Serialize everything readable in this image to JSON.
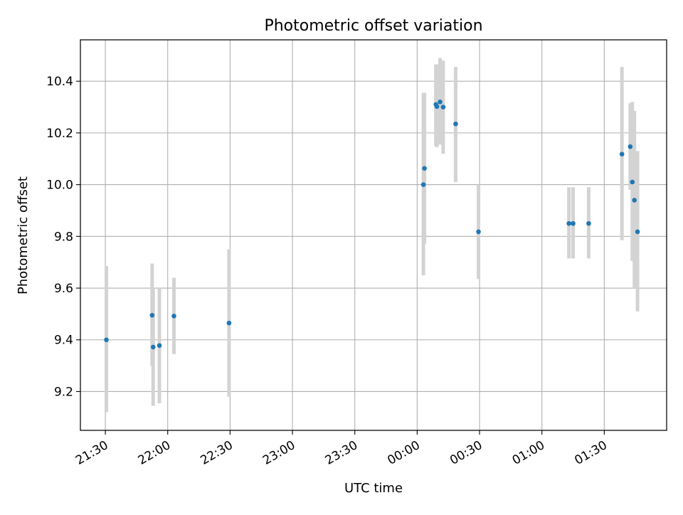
{
  "chart_data": {
    "type": "scatter",
    "title": "Photometric offset variation",
    "xlabel": "UTC time",
    "ylabel": "Photometric offset",
    "grid": true,
    "xlim": [
      "21:18",
      "02:00"
    ],
    "ylim": [
      9.05,
      10.56
    ],
    "x_ticks": [
      "21:30",
      "22:00",
      "22:30",
      "23:00",
      "23:30",
      "00:00",
      "00:30",
      "01:00",
      "01:30"
    ],
    "y_ticks": [
      "9.2",
      "9.4",
      "9.6",
      "9.8",
      "10.0",
      "10.2",
      "10.4"
    ],
    "colors": {
      "points": "#1f77b4",
      "error_bars": "#d3d3d3",
      "grid": "#b0b0b0"
    },
    "points": [
      {
        "time": "21:30.5",
        "y": 9.4,
        "yerr_low": 9.12,
        "yerr_high": 9.685
      },
      {
        "time": "21:52.5",
        "y": 9.495,
        "yerr_low": 9.3,
        "yerr_high": 9.695
      },
      {
        "time": "21:53.0",
        "y": 9.372,
        "yerr_low": 9.145,
        "yerr_high": 9.6
      },
      {
        "time": "21:56.0",
        "y": 9.378,
        "yerr_low": 9.155,
        "yerr_high": 9.6
      },
      {
        "time": "22:03.0",
        "y": 9.492,
        "yerr_low": 9.345,
        "yerr_high": 9.64
      },
      {
        "time": "22:29.5",
        "y": 9.465,
        "yerr_low": 9.18,
        "yerr_high": 9.75
      },
      {
        "time": "00:03.0",
        "y": 10.0,
        "yerr_low": 9.65,
        "yerr_high": 10.355
      },
      {
        "time": "00:03.5",
        "y": 10.063,
        "yerr_low": 9.77,
        "yerr_high": 10.355
      },
      {
        "time": "00:09.0",
        "y": 10.31,
        "yerr_low": 10.15,
        "yerr_high": 10.465
      },
      {
        "time": "00:09.5",
        "y": 10.302,
        "yerr_low": 10.145,
        "yerr_high": 10.465
      },
      {
        "time": "00:11.0",
        "y": 10.32,
        "yerr_low": 10.155,
        "yerr_high": 10.49
      },
      {
        "time": "00:12.5",
        "y": 10.3,
        "yerr_low": 10.12,
        "yerr_high": 10.48
      },
      {
        "time": "00:18.5",
        "y": 10.235,
        "yerr_low": 10.01,
        "yerr_high": 10.455
      },
      {
        "time": "00:29.5",
        "y": 9.818,
        "yerr_low": 9.635,
        "yerr_high": 10.0
      },
      {
        "time": "01:13.0",
        "y": 9.85,
        "yerr_low": 9.715,
        "yerr_high": 9.99
      },
      {
        "time": "01:15.0",
        "y": 9.85,
        "yerr_low": 9.715,
        "yerr_high": 9.99
      },
      {
        "time": "01:22.5",
        "y": 9.85,
        "yerr_low": 9.715,
        "yerr_high": 9.99
      },
      {
        "time": "01:38.5",
        "y": 10.118,
        "yerr_low": 9.785,
        "yerr_high": 10.455
      },
      {
        "time": "01:42.5",
        "y": 10.147,
        "yerr_low": 9.98,
        "yerr_high": 10.315
      },
      {
        "time": "01:43.5",
        "y": 10.01,
        "yerr_low": 9.705,
        "yerr_high": 10.32
      },
      {
        "time": "01:44.5",
        "y": 9.94,
        "yerr_low": 9.6,
        "yerr_high": 10.285
      },
      {
        "time": "01:46.0",
        "y": 9.818,
        "yerr_low": 9.51,
        "yerr_high": 10.13
      }
    ]
  }
}
